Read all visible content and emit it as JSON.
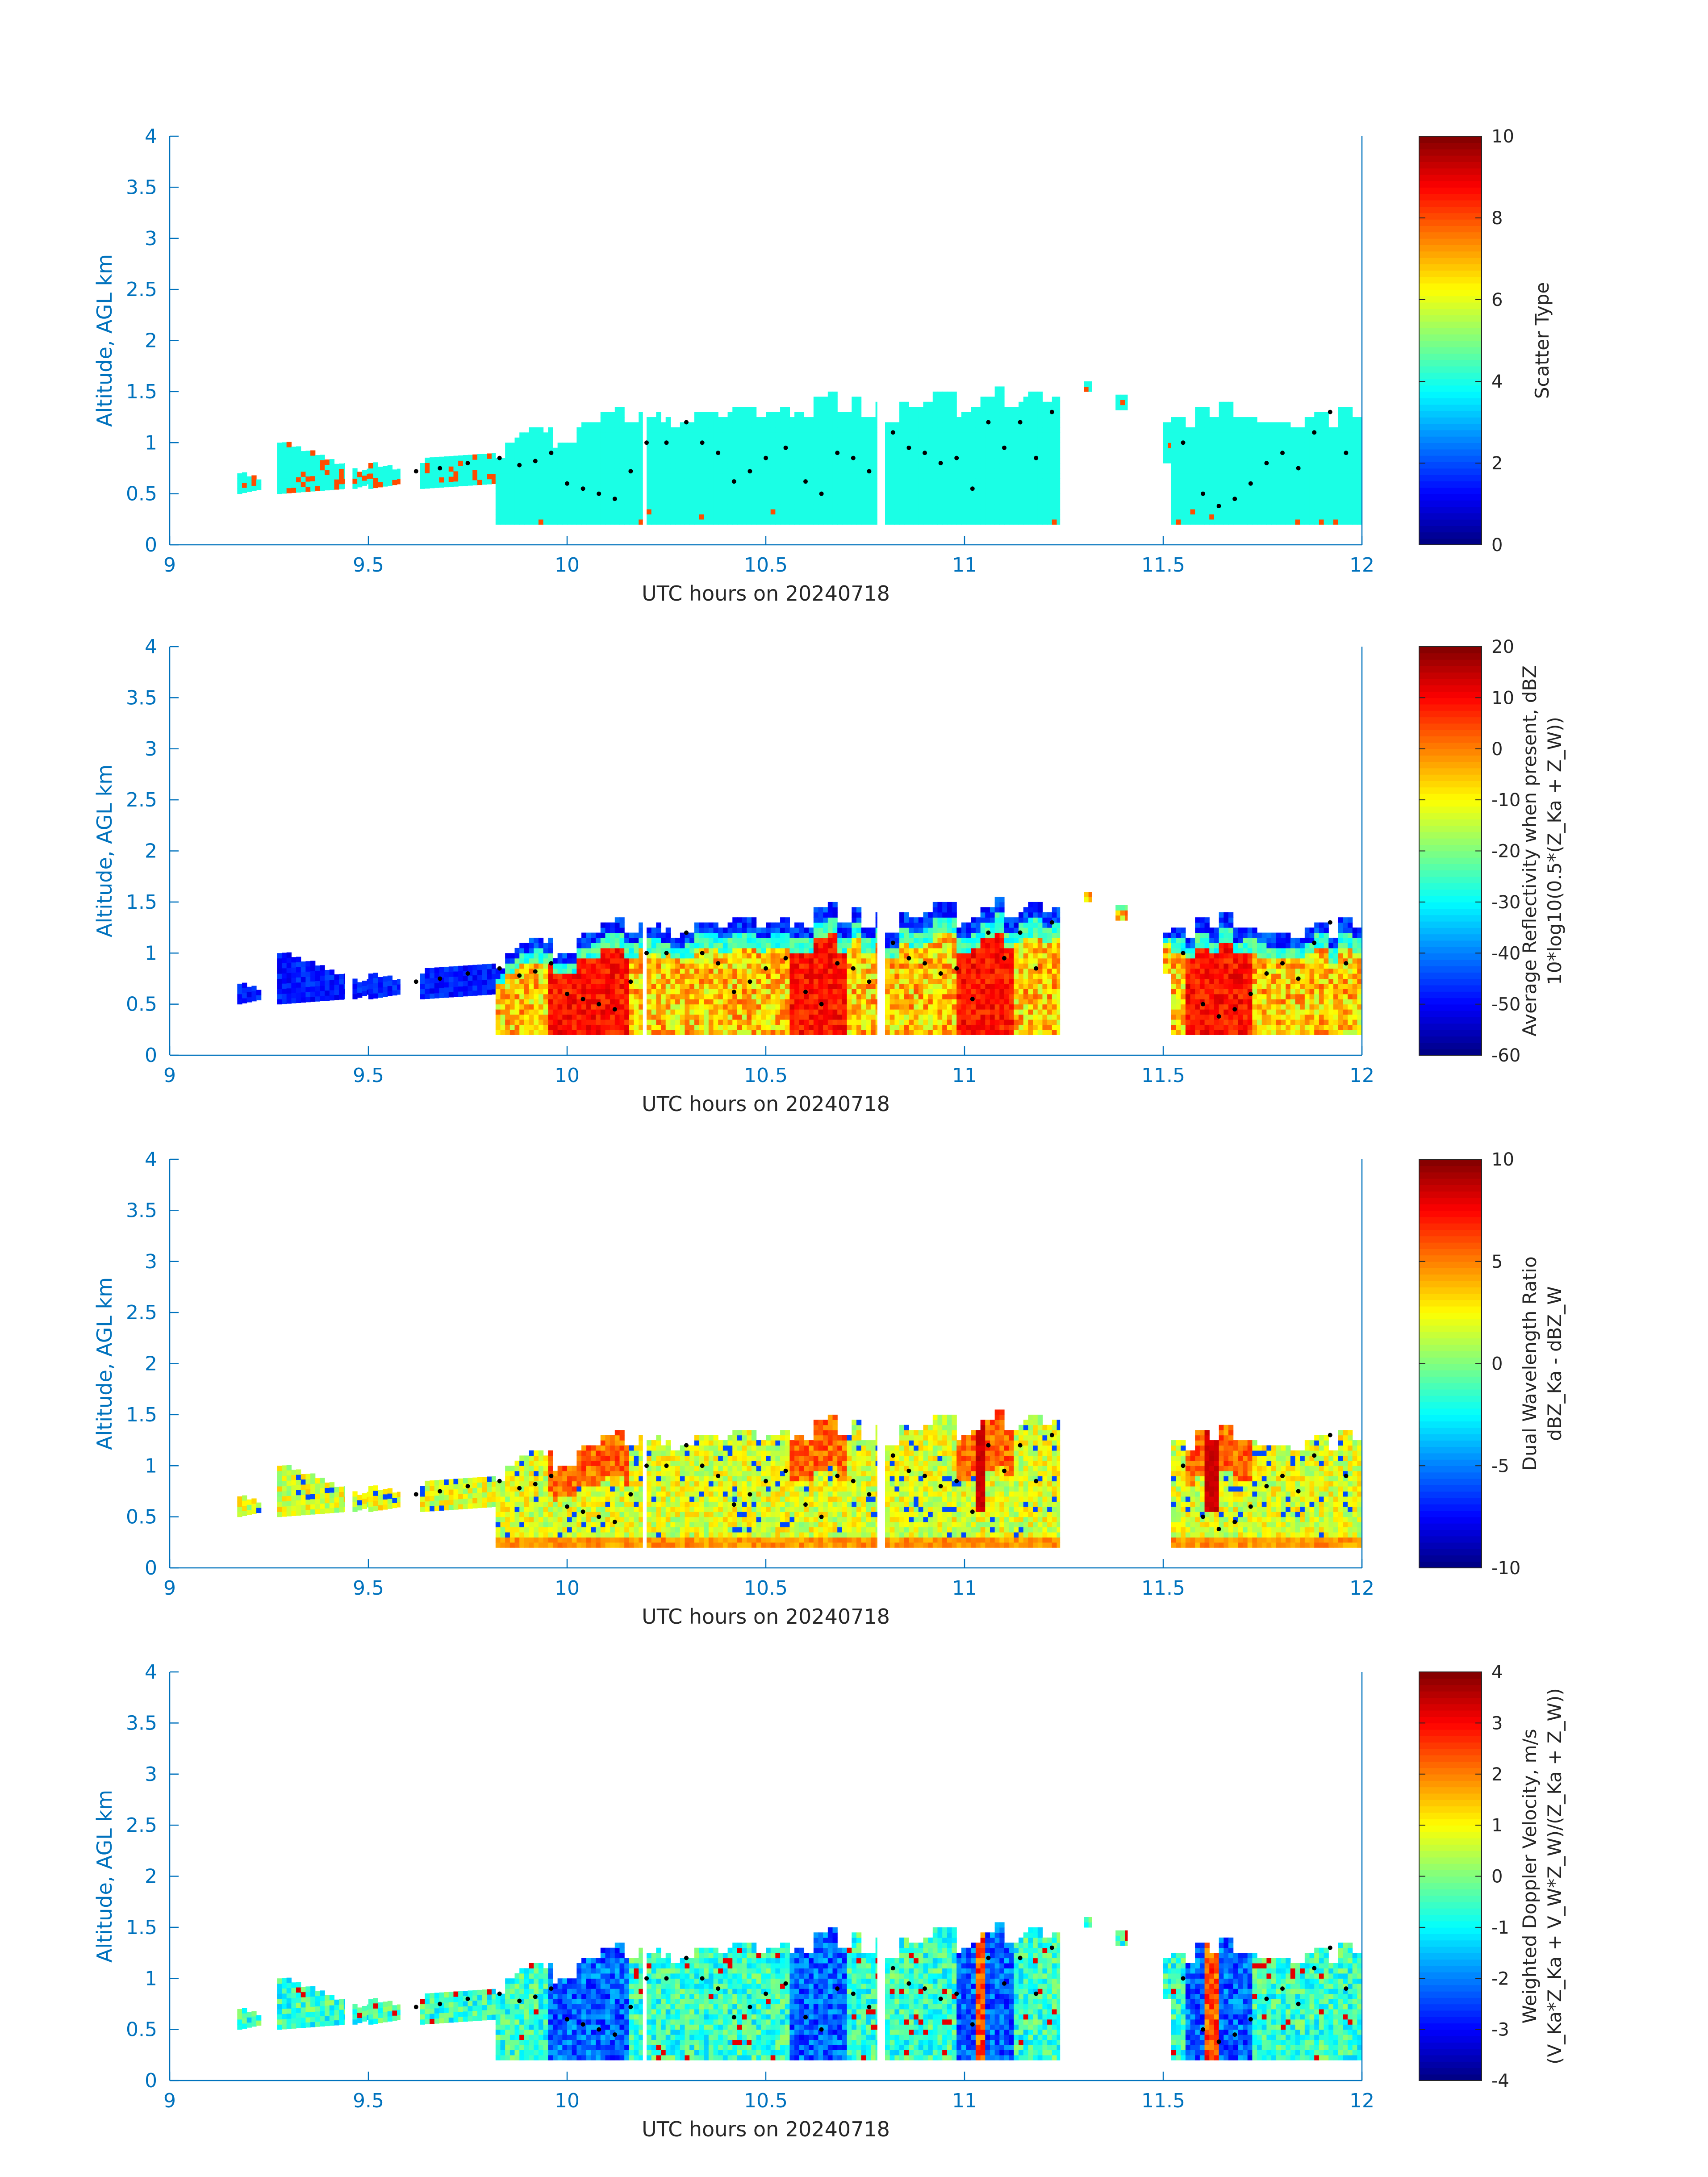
{
  "figure": {
    "axis_color": "#0072bd",
    "colorbar_text_color": "#262626"
  },
  "chart_data": [
    {
      "type": "heatmap",
      "title": "",
      "xlabel": "UTC hours on 20240718",
      "ylabel": "Altitude, AGL km",
      "xlim": [
        9,
        12
      ],
      "ylim": [
        0,
        4
      ],
      "x_ticks": [
        9,
        9.5,
        10,
        10.5,
        11,
        11.5,
        12
      ],
      "x_tick_labels": [
        "9",
        "9.5",
        "10",
        "10.5",
        "11",
        "11.5",
        "12"
      ],
      "y_ticks": [
        0,
        0.5,
        1,
        1.5,
        2,
        2.5,
        3,
        3.5,
        4
      ],
      "y_tick_labels": [
        "0",
        "0.5",
        "1",
        "1.5",
        "2",
        "2.5",
        "3",
        "3.5",
        "4"
      ],
      "colorbar": {
        "label_lines": [
          "Scatter Type"
        ],
        "clim": [
          0,
          10
        ],
        "ticks": [
          0,
          2,
          4,
          6,
          8,
          10
        ],
        "tick_labels": [
          "0",
          "2",
          "4",
          "6",
          "8",
          "10"
        ],
        "colormap": "jet"
      },
      "field": "scatter_type",
      "grid": false
    },
    {
      "type": "heatmap",
      "title": "",
      "xlabel": "UTC hours on 20240718",
      "ylabel": "Altitude, AGL km",
      "xlim": [
        9,
        12
      ],
      "ylim": [
        0,
        4
      ],
      "x_ticks": [
        9,
        9.5,
        10,
        10.5,
        11,
        11.5,
        12
      ],
      "x_tick_labels": [
        "9",
        "9.5",
        "10",
        "10.5",
        "11",
        "11.5",
        "12"
      ],
      "y_ticks": [
        0,
        0.5,
        1,
        1.5,
        2,
        2.5,
        3,
        3.5,
        4
      ],
      "y_tick_labels": [
        "0",
        "0.5",
        "1",
        "1.5",
        "2",
        "2.5",
        "3",
        "3.5",
        "4"
      ],
      "colorbar": {
        "label_lines": [
          "Average Reflectivity when present, dBZ",
          "10*log10(0.5*(Z_Ka + Z_W))"
        ],
        "clim": [
          -60,
          20
        ],
        "ticks": [
          -60,
          -50,
          -40,
          -30,
          -20,
          -10,
          0,
          10,
          20
        ],
        "tick_labels": [
          "-60",
          "-50",
          "-40",
          "-30",
          "-20",
          "-10",
          "0",
          "10",
          "20"
        ],
        "colormap": "jet"
      },
      "field": "reflectivity",
      "grid": false
    },
    {
      "type": "heatmap",
      "title": "",
      "xlabel": "UTC hours on 20240718",
      "ylabel": "Altitude, AGL km",
      "xlim": [
        9,
        12
      ],
      "ylim": [
        0,
        4
      ],
      "x_ticks": [
        9,
        9.5,
        10,
        10.5,
        11,
        11.5,
        12
      ],
      "x_tick_labels": [
        "9",
        "9.5",
        "10",
        "10.5",
        "11",
        "11.5",
        "12"
      ],
      "y_ticks": [
        0,
        0.5,
        1,
        1.5,
        2,
        2.5,
        3,
        3.5,
        4
      ],
      "y_tick_labels": [
        "0",
        "0.5",
        "1",
        "1.5",
        "2",
        "2.5",
        "3",
        "3.5",
        "4"
      ],
      "colorbar": {
        "label_lines": [
          "Dual Wavelength Ratio",
          "dBZ_Ka - dBZ_W"
        ],
        "clim": [
          -10,
          10
        ],
        "ticks": [
          -10,
          -5,
          0,
          5,
          10
        ],
        "tick_labels": [
          "-10",
          "-5",
          "0",
          "5",
          "10"
        ],
        "colormap": "jet"
      },
      "field": "dwr",
      "grid": false
    },
    {
      "type": "heatmap",
      "title": "",
      "xlabel": "UTC hours on 20240718",
      "ylabel": "Altitude, AGL km",
      "xlim": [
        9,
        12
      ],
      "ylim": [
        0,
        4
      ],
      "x_ticks": [
        9,
        9.5,
        10,
        10.5,
        11,
        11.5,
        12
      ],
      "x_tick_labels": [
        "9",
        "9.5",
        "10",
        "10.5",
        "11",
        "11.5",
        "12"
      ],
      "y_ticks": [
        0,
        0.5,
        1,
        1.5,
        2,
        2.5,
        3,
        3.5,
        4
      ],
      "y_tick_labels": [
        "0",
        "0.5",
        "1",
        "1.5",
        "2",
        "2.5",
        "3",
        "3.5",
        "4"
      ],
      "colorbar": {
        "label_lines": [
          "Weighted Doppler Velocity, m/s",
          "(V_Ka*Z_Ka + V_W*Z_W)/(Z_Ka + Z_W))"
        ],
        "clim": [
          -4,
          4
        ],
        "ticks": [
          -4,
          -3,
          -2,
          -1,
          0,
          1,
          2,
          3,
          4
        ],
        "tick_labels": [
          "-4",
          "-3",
          "-2",
          "-1",
          "0",
          "1",
          "2",
          "3",
          "4"
        ],
        "colormap": "jet"
      },
      "field": "doppler",
      "grid": false
    }
  ],
  "cloud_segments": [
    {
      "x0": 9.17,
      "x1": 9.23,
      "ybot": [
        0.5,
        0.55
      ],
      "ytop": [
        0.7,
        0.62
      ],
      "kind": "scatter"
    },
    {
      "x0": 9.27,
      "x1": 9.44,
      "ybot": [
        0.5,
        0.55
      ],
      "ytop": [
        1.0,
        0.75
      ],
      "kind": "scatter"
    },
    {
      "x0": 9.46,
      "x1": 9.5,
      "ybot": [
        0.55,
        0.6
      ],
      "ytop": [
        0.72,
        0.7
      ],
      "kind": "scatter"
    },
    {
      "x0": 9.5,
      "x1": 9.58,
      "ybot": [
        0.55,
        0.6
      ],
      "ytop": [
        0.78,
        0.72
      ],
      "kind": "scatter"
    },
    {
      "x0": 9.63,
      "x1": 9.82,
      "ybot": [
        0.55,
        0.6
      ],
      "ytop": [
        0.8,
        0.9
      ],
      "kind": "scatter"
    },
    {
      "x0": 9.82,
      "x1": 10.19,
      "ybot": [
        0.2,
        0.2
      ],
      "ytop": [
        1.1,
        1.38
      ],
      "kind": "body"
    },
    {
      "x0": 10.2,
      "x1": 10.78,
      "ybot": [
        0.2,
        0.2
      ],
      "ytop": [
        1.25,
        1.55
      ],
      "kind": "body"
    },
    {
      "x0": 10.8,
      "x1": 11.24,
      "ybot": [
        0.2,
        0.2
      ],
      "ytop": [
        1.45,
        1.6
      ],
      "kind": "body"
    },
    {
      "x0": 11.3,
      "x1": 11.32,
      "ybot": [
        1.5,
        1.5
      ],
      "ytop": [
        1.58,
        1.58
      ],
      "kind": "speck"
    },
    {
      "x0": 11.38,
      "x1": 11.41,
      "ybot": [
        1.32,
        1.32
      ],
      "ytop": [
        1.45,
        1.45
      ],
      "kind": "speck"
    },
    {
      "x0": 11.5,
      "x1": 11.52,
      "ybot": [
        0.8,
        0.8
      ],
      "ytop": [
        1.18,
        1.18
      ],
      "kind": "speck"
    },
    {
      "x0": 11.52,
      "x1": 12.0,
      "ybot": [
        0.2,
        0.2
      ],
      "ytop": [
        1.4,
        1.35
      ],
      "kind": "body"
    }
  ],
  "height_markers": [
    {
      "x": 9.62,
      "y": 0.72
    },
    {
      "x": 9.68,
      "y": 0.75
    },
    {
      "x": 9.75,
      "y": 0.8
    },
    {
      "x": 9.83,
      "y": 0.85
    },
    {
      "x": 9.88,
      "y": 0.78
    },
    {
      "x": 9.92,
      "y": 0.82
    },
    {
      "x": 9.96,
      "y": 0.9
    },
    {
      "x": 10.0,
      "y": 0.6
    },
    {
      "x": 10.04,
      "y": 0.55
    },
    {
      "x": 10.08,
      "y": 0.5
    },
    {
      "x": 10.12,
      "y": 0.45
    },
    {
      "x": 10.16,
      "y": 0.72
    },
    {
      "x": 10.2,
      "y": 1.0
    },
    {
      "x": 10.25,
      "y": 1.0
    },
    {
      "x": 10.3,
      "y": 1.2
    },
    {
      "x": 10.34,
      "y": 1.0
    },
    {
      "x": 10.38,
      "y": 0.9
    },
    {
      "x": 10.42,
      "y": 0.62
    },
    {
      "x": 10.46,
      "y": 0.72
    },
    {
      "x": 10.5,
      "y": 0.85
    },
    {
      "x": 10.55,
      "y": 0.95
    },
    {
      "x": 10.6,
      "y": 0.62
    },
    {
      "x": 10.64,
      "y": 0.5
    },
    {
      "x": 10.68,
      "y": 0.9
    },
    {
      "x": 10.72,
      "y": 0.85
    },
    {
      "x": 10.76,
      "y": 0.72
    },
    {
      "x": 10.82,
      "y": 1.1
    },
    {
      "x": 10.86,
      "y": 0.95
    },
    {
      "x": 10.9,
      "y": 0.9
    },
    {
      "x": 10.94,
      "y": 0.8
    },
    {
      "x": 10.98,
      "y": 0.85
    },
    {
      "x": 11.02,
      "y": 0.55
    },
    {
      "x": 11.06,
      "y": 1.2
    },
    {
      "x": 11.1,
      "y": 0.95
    },
    {
      "x": 11.14,
      "y": 1.2
    },
    {
      "x": 11.18,
      "y": 0.85
    },
    {
      "x": 11.22,
      "y": 1.3
    },
    {
      "x": 11.55,
      "y": 1.0
    },
    {
      "x": 11.6,
      "y": 0.5
    },
    {
      "x": 11.64,
      "y": 0.38
    },
    {
      "x": 11.68,
      "y": 0.45
    },
    {
      "x": 11.72,
      "y": 0.6
    },
    {
      "x": 11.76,
      "y": 0.8
    },
    {
      "x": 11.8,
      "y": 0.9
    },
    {
      "x": 11.84,
      "y": 0.75
    },
    {
      "x": 11.88,
      "y": 1.1
    },
    {
      "x": 11.92,
      "y": 1.3
    },
    {
      "x": 11.96,
      "y": 0.9
    }
  ]
}
